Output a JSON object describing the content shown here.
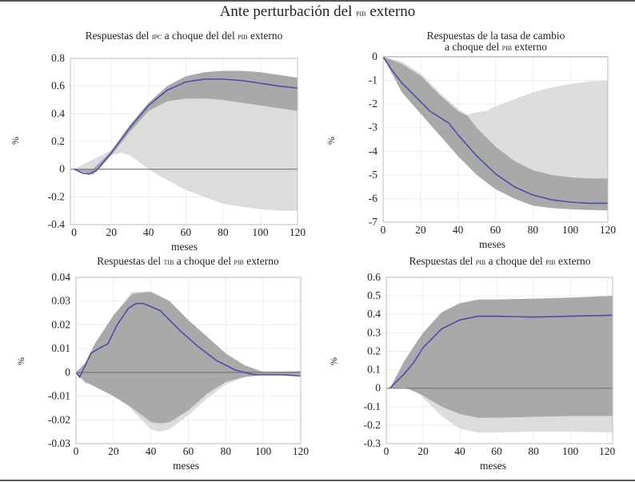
{
  "figure_title": [
    "Ante perturbación del ",
    "pib",
    " externo"
  ],
  "chart_data": [
    {
      "type": "line",
      "title_parts": [
        "Respuestas del ",
        "ipc",
        " a choque del del ",
        "pib",
        " externo"
      ],
      "xlabel": "meses",
      "ylabel": "%",
      "xlim": [
        -2,
        120
      ],
      "ylim": [
        -0.4,
        0.8
      ],
      "xticks": [
        0,
        20,
        40,
        60,
        80,
        100,
        120
      ],
      "yticks": [
        -0.4,
        -0.2,
        0,
        0.2,
        0.4,
        0.6,
        0.8
      ],
      "ytick_labels": [
        "-0.4",
        "-0.2",
        "0",
        "0.2",
        "0.4",
        "0.6",
        "0.8"
      ],
      "grid": true,
      "line": {
        "x": [
          0,
          5,
          8,
          12,
          20,
          30,
          40,
          50,
          60,
          70,
          80,
          90,
          100,
          110,
          120
        ],
        "y": [
          0,
          -0.03,
          -0.035,
          -0.01,
          0.12,
          0.3,
          0.46,
          0.57,
          0.63,
          0.65,
          0.65,
          0.64,
          0.62,
          0.6,
          0.585
        ]
      },
      "outer_band": {
        "x": [
          0,
          10,
          15,
          20,
          25,
          30,
          40,
          50,
          60,
          70,
          80,
          90,
          100,
          110,
          120
        ],
        "upper": [
          0,
          0.07,
          0.1,
          0.14,
          0.22,
          0.32,
          0.48,
          0.6,
          0.67,
          0.7,
          0.71,
          0.71,
          0.7,
          0.68,
          0.66
        ],
        "lower": [
          0,
          -0.04,
          0.02,
          0.1,
          0.12,
          0.1,
          0.0,
          -0.08,
          -0.15,
          -0.2,
          -0.25,
          -0.27,
          -0.29,
          -0.3,
          -0.3
        ]
      },
      "inner_band": {
        "x": [
          0,
          10,
          20,
          30,
          40,
          50,
          60,
          70,
          80,
          90,
          100,
          110,
          120
        ],
        "upper": [
          0,
          0.0,
          0.13,
          0.32,
          0.48,
          0.6,
          0.67,
          0.7,
          0.71,
          0.71,
          0.7,
          0.68,
          0.66
        ],
        "lower": [
          0,
          -0.04,
          0.1,
          0.27,
          0.42,
          0.49,
          0.51,
          0.51,
          0.5,
          0.48,
          0.46,
          0.44,
          0.42
        ]
      }
    },
    {
      "type": "line",
      "title_parts": [
        "Respuestas de la tasa de cambio",
        "",
        "\na choque del ",
        "pib",
        " externo"
      ],
      "xlabel": "meses",
      "ylabel": "%",
      "xlim": [
        0,
        120
      ],
      "ylim": [
        -7,
        0
      ],
      "xticks": [
        0,
        20,
        40,
        60,
        80,
        100,
        120
      ],
      "yticks": [
        -7,
        -6,
        -5,
        -4,
        -3,
        -2,
        -1,
        0
      ],
      "ytick_labels": [
        "-7",
        "-6",
        "-5",
        "-4",
        "-3",
        "-2",
        "-1",
        "0"
      ],
      "grid": true,
      "line": {
        "x": [
          0,
          5,
          10,
          20,
          25,
          30,
          35,
          40,
          50,
          60,
          70,
          80,
          90,
          100,
          110,
          120
        ],
        "y": [
          0,
          -0.6,
          -1.1,
          -1.9,
          -2.3,
          -2.55,
          -2.8,
          -3.3,
          -4.2,
          -4.95,
          -5.5,
          -5.85,
          -6.05,
          -6.15,
          -6.2,
          -6.2
        ]
      },
      "outer_band": {
        "x": [
          0,
          10,
          20,
          30,
          40,
          45,
          50,
          55,
          60,
          70,
          80,
          90,
          100,
          110,
          120
        ],
        "upper": [
          0,
          -0.2,
          -0.7,
          -1.5,
          -2.2,
          -2.45,
          -2.35,
          -2.3,
          -2.1,
          -1.8,
          -1.5,
          -1.3,
          -1.15,
          -1.05,
          -1.0
        ],
        "lower": [
          0,
          -1.5,
          -2.4,
          -3.3,
          -4.2,
          -4.6,
          -5.0,
          -5.3,
          -5.6,
          -6.0,
          -6.3,
          -6.4,
          -6.45,
          -6.48,
          -6.5
        ]
      },
      "inner_band": {
        "x": [
          0,
          10,
          20,
          30,
          40,
          45,
          50,
          60,
          70,
          80,
          90,
          100,
          110,
          120
        ],
        "upper": [
          0,
          -0.3,
          -0.8,
          -1.6,
          -2.3,
          -2.5,
          -3.0,
          -3.8,
          -4.4,
          -4.8,
          -5.0,
          -5.1,
          -5.15,
          -5.15
        ],
        "lower": [
          0,
          -1.5,
          -2.4,
          -3.3,
          -4.2,
          -4.6,
          -5.0,
          -5.6,
          -6.0,
          -6.3,
          -6.4,
          -6.45,
          -6.48,
          -6.5
        ]
      }
    },
    {
      "type": "line",
      "title_parts": [
        "Respuestas del ",
        "tib",
        " a choque del ",
        "pib",
        " externo"
      ],
      "xlabel": "meses",
      "ylabel": "%",
      "xlim": [
        0,
        120
      ],
      "ylim": [
        -0.03,
        0.04
      ],
      "xticks": [
        0,
        20,
        40,
        60,
        80,
        100,
        120
      ],
      "yticks": [
        -0.03,
        -0.02,
        -0.01,
        0,
        0.01,
        0.02,
        0.03,
        0.04
      ],
      "ytick_labels": [
        "-0.03",
        "-0.02",
        "-0.01",
        "0",
        "0.01",
        "0.02",
        "0.03",
        "0.04"
      ],
      "grid": true,
      "line": {
        "x": [
          0,
          2,
          5,
          8,
          12,
          17,
          22,
          28,
          32,
          36,
          45,
          55,
          65,
          75,
          85,
          95,
          100,
          110,
          120
        ],
        "y": [
          0,
          -0.002,
          0.003,
          0.008,
          0.01,
          0.012,
          0.02,
          0.027,
          0.029,
          0.029,
          0.026,
          0.018,
          0.011,
          0.005,
          0.001,
          -0.001,
          -0.001,
          -0.001,
          -0.0015
        ]
      },
      "outer_band": {
        "x": [
          0,
          5,
          8,
          12,
          15,
          17,
          20,
          30,
          40,
          45,
          50,
          60,
          70,
          80,
          90,
          100,
          120
        ],
        "upper": [
          0,
          0.004,
          0.008,
          0.013,
          0.017,
          0.02,
          0.024,
          0.034,
          0.034,
          0.032,
          0.03,
          0.022,
          0.015,
          0.008,
          0.003,
          0.0005,
          0.0005
        ],
        "lower": [
          0,
          -0.005,
          -0.004,
          0.002,
          0.003,
          0.003,
          -0.004,
          -0.016,
          -0.024,
          -0.025,
          -0.024,
          -0.018,
          -0.011,
          -0.005,
          -0.002,
          -0.001,
          -0.001
        ]
      },
      "inner_band": {
        "x": [
          0,
          5,
          10,
          20,
          30,
          40,
          45,
          50,
          60,
          70,
          80,
          90,
          100,
          120
        ],
        "upper": [
          0,
          0.004,
          0.012,
          0.024,
          0.033,
          0.034,
          0.032,
          0.03,
          0.022,
          0.015,
          0.008,
          0.003,
          0,
          0.0005
        ],
        "lower": [
          0,
          -0.004,
          -0.006,
          -0.01,
          -0.015,
          -0.021,
          -0.0215,
          -0.021,
          -0.016,
          -0.009,
          -0.004,
          -0.002,
          -0.001,
          -0.001
        ]
      }
    },
    {
      "type": "line",
      "title_parts": [
        "Respuestas del ",
        "pib",
        " a choque del ",
        "pib",
        " externo"
      ],
      "xlabel": "meses",
      "ylabel": "%",
      "xlim": [
        0,
        123
      ],
      "ylim": [
        -0.3,
        0.6
      ],
      "xticks": [
        0,
        20,
        40,
        60,
        80,
        100,
        120
      ],
      "yticks": [
        -0.3,
        -0.2,
        -0.1,
        0,
        0.1,
        0.2,
        0.3,
        0.4,
        0.5,
        0.6
      ],
      "ytick_labels": [
        "-0.3",
        "-0.2",
        "-0.1",
        "0",
        "0.1",
        "0.2",
        "0.3",
        "0.4",
        "0.5",
        "0.6"
      ],
      "grid": true,
      "line": {
        "x": [
          2,
          5,
          10,
          15,
          20,
          30,
          40,
          50,
          60,
          80,
          100,
          123
        ],
        "y": [
          0,
          0.03,
          0.08,
          0.14,
          0.22,
          0.32,
          0.37,
          0.39,
          0.39,
          0.385,
          0.39,
          0.395
        ]
      },
      "outer_band": {
        "x": [
          2,
          10,
          15,
          20,
          30,
          40,
          50,
          60,
          80,
          100,
          123
        ],
        "upper": [
          0,
          0.15,
          0.23,
          0.3,
          0.41,
          0.46,
          0.48,
          0.48,
          0.485,
          0.49,
          0.5
        ],
        "lower": [
          0,
          0.02,
          0.01,
          -0.05,
          -0.15,
          -0.22,
          -0.24,
          -0.24,
          -0.235,
          -0.235,
          -0.24
        ]
      },
      "inner_band": {
        "x": [
          2,
          10,
          20,
          30,
          40,
          50,
          60,
          80,
          100,
          123
        ],
        "upper": [
          0,
          0.15,
          0.3,
          0.41,
          0.46,
          0.48,
          0.48,
          0.485,
          0.49,
          0.5
        ],
        "lower": [
          0,
          0.005,
          -0.04,
          -0.1,
          -0.14,
          -0.16,
          -0.16,
          -0.155,
          -0.15,
          -0.15
        ]
      }
    }
  ],
  "colors": {
    "line": "#4a4fa8",
    "inner_band": "#a9a9a9",
    "outer_band": "#dcdcdc",
    "zero_line": "#777777",
    "grid": "#ececec"
  }
}
